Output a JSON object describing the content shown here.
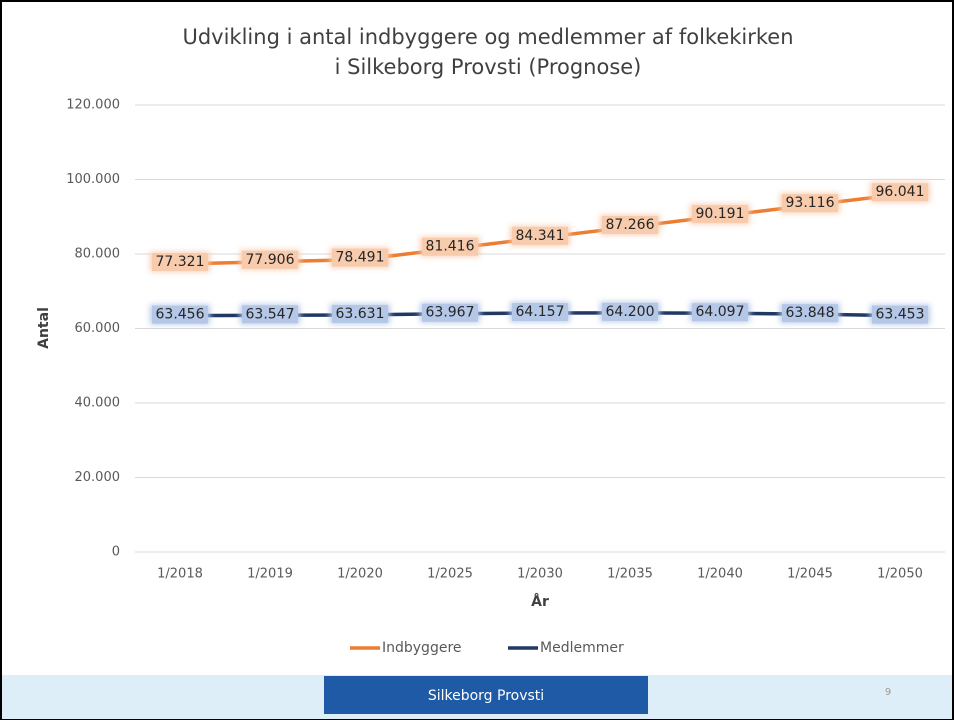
{
  "chart_data": {
    "type": "line",
    "title": [
      "Udvikling i antal indbyggere og medlemmer af folkekirken",
      "i Silkeborg Provsti (Prognose)"
    ],
    "x_label": "År",
    "y_label": "Antal",
    "categories": [
      "1/2018",
      "1/2019",
      "1/2020",
      "1/2025",
      "1/2030",
      "1/2035",
      "1/2040",
      "1/2045",
      "1/2050"
    ],
    "series": [
      {
        "name": "Indbyggere",
        "color": "#ed7d31",
        "values": [
          77321,
          77906,
          78491,
          81416,
          84341,
          87266,
          90191,
          93116,
          96041
        ],
        "value_labels": [
          "77.321",
          "77.906",
          "78.491",
          "81.416",
          "84.341",
          "87.266",
          "90.191",
          "93.116",
          "96.041"
        ]
      },
      {
        "name": "Medlemmer",
        "color": "#1f3864",
        "values": [
          63456,
          63547,
          63631,
          63967,
          64157,
          64200,
          64097,
          63848,
          63453
        ],
        "value_labels": [
          "63.456",
          "63.547",
          "63.631",
          "63.967",
          "64.157",
          "64.200",
          "64.097",
          "63.848",
          "63.453"
        ]
      }
    ],
    "ylim": [
      0,
      120000
    ],
    "yticks": [
      0,
      {
        "value": 20000,
        "label": "20.000"
      },
      {
        "value": 40000,
        "label": "40.000"
      },
      {
        "value": 60000,
        "label": "60.000"
      },
      {
        "value": 80000,
        "label": "80.000"
      },
      {
        "value": 100000,
        "label": "100.000"
      },
      {
        "value": 120000,
        "label": "120.000"
      }
    ],
    "grid": true,
    "legend": "bottom"
  },
  "footer": {
    "text": "Silkeborg Provsti",
    "page": "9"
  }
}
